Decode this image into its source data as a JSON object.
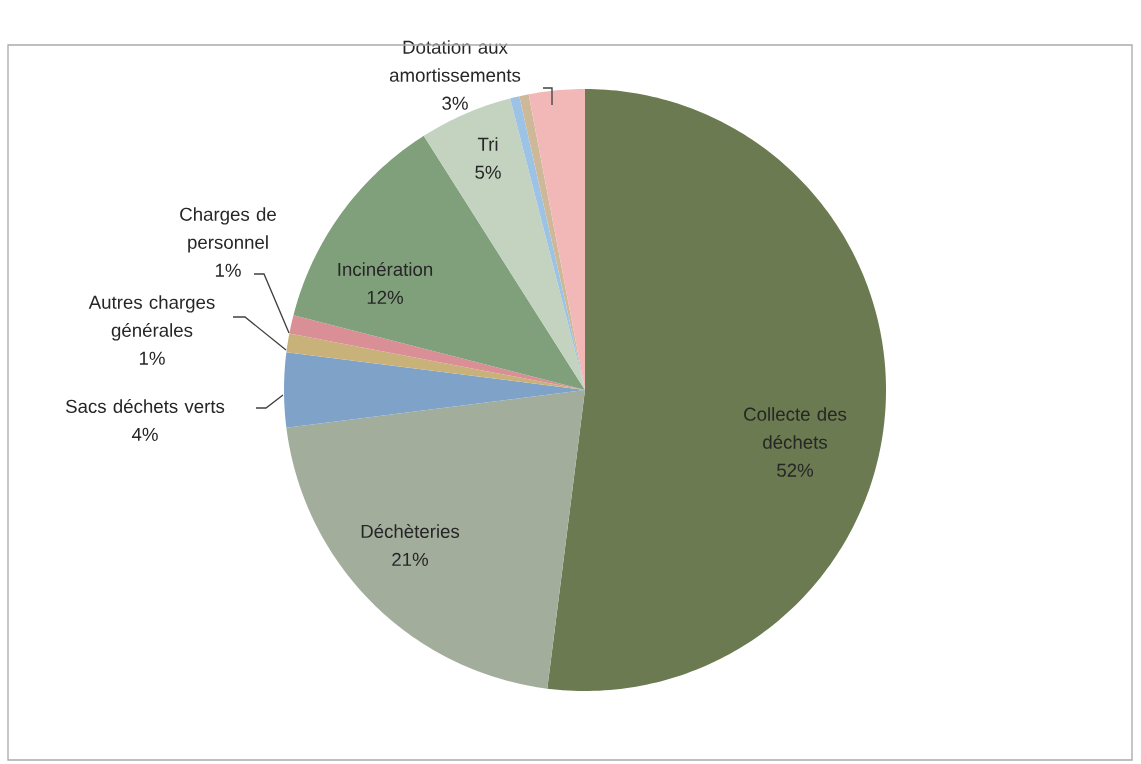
{
  "chart_data": {
    "type": "pie",
    "categories": [
      "Collecte des déchets",
      "Déchèteries",
      "Sacs déchets verts",
      "Autres charges générales",
      "Charges de personnel",
      "Incinération",
      "Tri",
      null,
      null,
      "Dotation aux amortissements"
    ],
    "values": [
      52,
      21,
      4,
      1,
      1,
      12,
      5,
      0.5,
      0.5,
      3
    ],
    "value_labels": [
      "52%",
      "21%",
      "4%",
      "1%",
      "1%",
      "12%",
      "5%",
      null,
      null,
      "3%"
    ],
    "colors": [
      "#6b7a50",
      "#a3ad9c",
      "#7fa3c8",
      "#c9b27a",
      "#d98f95",
      "#7fa07a",
      "#c3d3c0",
      "#9cc3e5",
      "#cdb99a",
      "#f2b8b8"
    ]
  }
}
